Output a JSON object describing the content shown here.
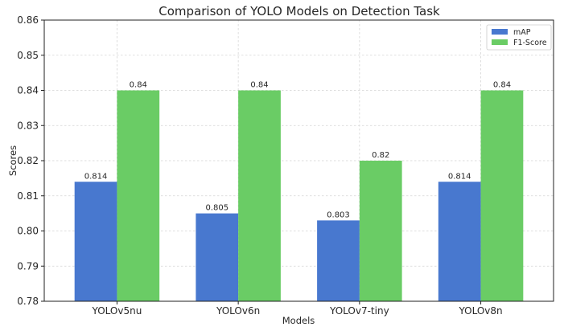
{
  "chart_data": {
    "type": "bar",
    "title": "Comparison of YOLO Models on Detection Task",
    "xlabel": "Models",
    "ylabel": "Scores",
    "ylim": [
      0.78,
      0.86
    ],
    "yticks": [
      0.78,
      0.79,
      0.8,
      0.81,
      0.82,
      0.83,
      0.84,
      0.85,
      0.86
    ],
    "ytick_labels": [
      "0.78",
      "0.79",
      "0.80",
      "0.81",
      "0.82",
      "0.83",
      "0.84",
      "0.85",
      "0.86"
    ],
    "categories": [
      "YOLOv5nu",
      "YOLOv6n",
      "YOLOv7-tiny",
      "YOLOv8n"
    ],
    "series": [
      {
        "name": "mAP",
        "color": "#4878cf",
        "values": [
          0.814,
          0.805,
          0.803,
          0.814
        ],
        "labels": [
          "0.814",
          "0.805",
          "0.803",
          "0.814"
        ]
      },
      {
        "name": "F1-Score",
        "color": "#6acc65",
        "values": [
          0.84,
          0.84,
          0.82,
          0.84
        ],
        "labels": [
          "0.84",
          "0.84",
          "0.82",
          "0.84"
        ]
      }
    ],
    "grid": true,
    "legend_position": "top-right"
  }
}
